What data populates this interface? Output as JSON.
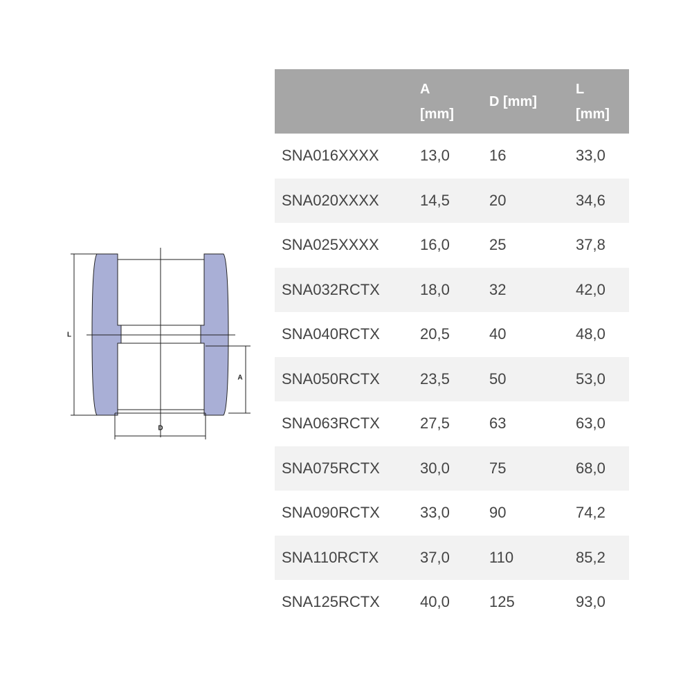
{
  "drawing": {
    "labels": {
      "length": "L",
      "inner": "A",
      "diameter": "D"
    }
  },
  "table": {
    "header": [
      "",
      "A [mm]",
      "D [mm]",
      "L [mm]"
    ],
    "rows": [
      [
        "SNA016XXXX",
        "13,0",
        "16",
        "33,0"
      ],
      [
        "SNA020XXXX",
        "14,5",
        "20",
        "34,6"
      ],
      [
        "SNA025XXXX",
        "16,0",
        "25",
        "37,8"
      ],
      [
        "SNA032RCTX",
        "18,0",
        "32",
        "42,0"
      ],
      [
        "SNA040RCTX",
        "20,5",
        "40",
        "48,0"
      ],
      [
        "SNA050RCTX",
        "23,5",
        "50",
        "53,0"
      ],
      [
        "SNA063RCTX",
        "27,5",
        "63",
        "63,0"
      ],
      [
        "SNA075RCTX",
        "30,0",
        "75",
        "68,0"
      ],
      [
        "SNA090RCTX",
        "33,0",
        "90",
        "74,2"
      ],
      [
        "SNA110RCTX",
        "37,0",
        "110",
        "85,2"
      ],
      [
        "SNA125RCTX",
        "40,0",
        "125",
        "93,0"
      ]
    ]
  }
}
